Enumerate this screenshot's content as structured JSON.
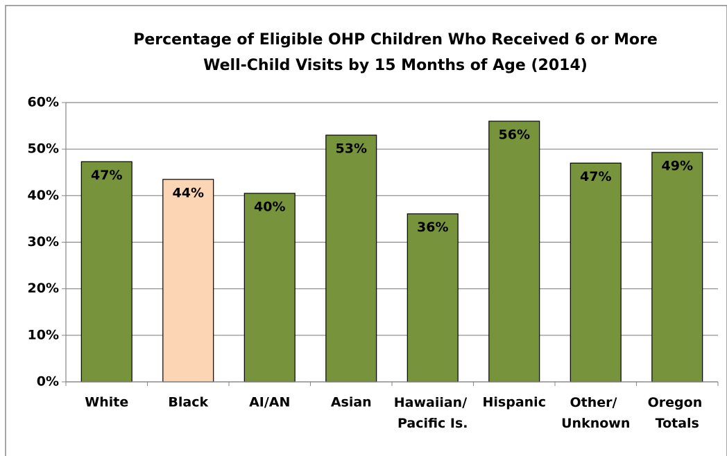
{
  "chart_data": {
    "type": "bar",
    "title": [
      "Percentage of Eligible OHP Children Who Received 6 or More",
      "Well-Child Visits by 15 Months of Age (2014)"
    ],
    "categories": [
      "White",
      "Black",
      "AI/AN",
      "Asian",
      "Hawaiian/ Pacific Is.",
      "Hispanic",
      "Other/ Unknown",
      "Oregon Totals"
    ],
    "values": [
      47.3,
      43.5,
      40.5,
      53,
      36.1,
      56,
      47,
      49.3
    ],
    "value_labels": [
      "47%",
      "44%",
      "40%",
      "53%",
      "36%",
      "56%",
      "47%",
      "49%"
    ],
    "colors": [
      "#77933c",
      "#fcd5b5",
      "#77933c",
      "#77933c",
      "#77933c",
      "#77933c",
      "#77933c",
      "#77933c"
    ],
    "ylim": [
      0,
      60
    ],
    "yticks": [
      {
        "value": 0,
        "label": "0%"
      },
      {
        "value": 10,
        "label": "10%"
      },
      {
        "value": 20,
        "label": "20%"
      },
      {
        "value": 30,
        "label": "30%"
      },
      {
        "value": 40,
        "label": "40%"
      },
      {
        "value": 50,
        "label": "50%"
      },
      {
        "value": 60,
        "label": "60%"
      }
    ],
    "grid": true
  }
}
